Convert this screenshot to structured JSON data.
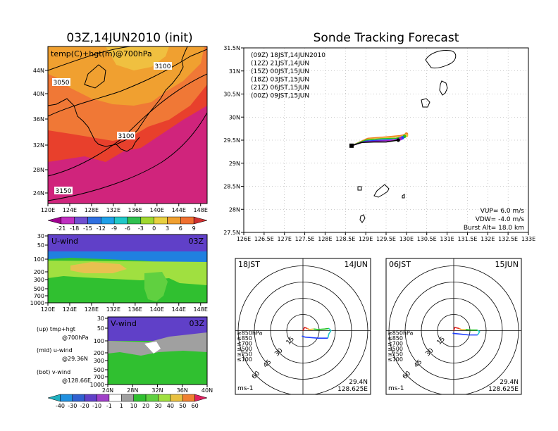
{
  "left_map": {
    "title": "03Z,14JUN2010 (init)",
    "field_label": "temp(C)+hgt(m)@700hPa",
    "lat_ticks": [
      "44N",
      "40N",
      "36N",
      "32N",
      "28N",
      "24N"
    ],
    "lon_ticks": [
      "120E",
      "124E",
      "128E",
      "132E",
      "136E",
      "140E",
      "144E",
      "148E"
    ],
    "contour_labels": [
      "3050",
      "3100",
      "3100",
      "3150"
    ],
    "colorbar_labels": [
      "-21",
      "-18",
      "-15",
      "-12",
      "-9",
      "-6",
      "-3",
      "0",
      "3",
      "6",
      "9"
    ]
  },
  "u_wind": {
    "label": "U-wind",
    "time": "03Z",
    "p_ticks": [
      "30",
      "50",
      "100",
      "200",
      "300",
      "500",
      "700",
      "1000"
    ],
    "lon_ticks": [
      "120E",
      "124E",
      "128E",
      "132E",
      "136E",
      "140E",
      "144E",
      "148E"
    ]
  },
  "v_wind": {
    "label": "V-wind",
    "time": "03Z",
    "p_ticks": [
      "30",
      "50",
      "100",
      "200",
      "300",
      "500",
      "700",
      "1000"
    ],
    "lat_ticks": [
      "24N",
      "28N",
      "32N",
      "36N",
      "40N"
    ]
  },
  "wind_colorbar_labels": [
    "-40",
    "-30",
    "-20",
    "-10",
    "-1",
    "1",
    "10",
    "20",
    "30",
    "40",
    "50",
    "60"
  ],
  "legend_notes": [
    {
      "line1": "(up) tmp+hgt",
      "line2": "@700hPa"
    },
    {
      "line1": "(mid) u-wind",
      "line2": "@29.36N"
    },
    {
      "line1": "(bot) v-wind",
      "line2": "@128.66E"
    }
  ],
  "forecast": {
    "title": "Sonde Tracking Forecast",
    "entries": [
      {
        "text": "(09Z)  18JST,14JUN2010",
        "color": "#000000"
      },
      {
        "text": "(12Z)  21JST,14JUN",
        "color": "#a020c8"
      },
      {
        "text": "(15Z)  00JST,15JUN",
        "color": "#2040ff"
      },
      {
        "text": "(18Z)  03JST,15JUN",
        "color": "#20c020"
      },
      {
        "text": "(21Z)  06JST,15JUN",
        "color": "#e8c040"
      },
      {
        "text": "(00Z)  09JST,15JUN",
        "color": "#f08020"
      }
    ],
    "params": [
      {
        "text": "VUP=  6.0  m/s"
      },
      {
        "text": "VDW=  -4.0  m/s"
      },
      {
        "text": "Burst Alt=  18.0  km"
      }
    ],
    "lat_ticks": [
      "31.5N",
      "31N",
      "30.5N",
      "30N",
      "29.5N",
      "29N",
      "28.5N",
      "28N",
      "27.5N"
    ],
    "lon_ticks": [
      "126E",
      "126.5E",
      "127E",
      "127.5E",
      "128E",
      "128.5E",
      "129E",
      "129.5E",
      "130E",
      "130.5E",
      "131E",
      "131.5E",
      "132E",
      "132.5E",
      "133E"
    ]
  },
  "hodographs": [
    {
      "time": "18JST",
      "date": "14JUN",
      "ring_labels": [
        "15",
        "30",
        "45",
        "60"
      ],
      "levels": [
        {
          "text": "≥850hPa",
          "color": "#e02020"
        },
        {
          "text": "≤850",
          "color": "#f08020"
        },
        {
          "text": "≤700",
          "color": "#e8c040"
        },
        {
          "text": "≤500",
          "color": "#20c020"
        },
        {
          "text": "≤250",
          "color": "#20c8c8"
        },
        {
          "text": "≤100",
          "color": "#2040ff"
        }
      ],
      "unit": "ms-1",
      "lat": "29.4N",
      "lon": "128.625E"
    },
    {
      "time": "06JST",
      "date": "15JUN",
      "ring_labels": [
        "15",
        "30",
        "45",
        "60"
      ],
      "levels": [
        {
          "text": "≥850hPa",
          "color": "#e02020"
        },
        {
          "text": "≤850",
          "color": "#f08020"
        },
        {
          "text": "≤700",
          "color": "#e8c040"
        },
        {
          "text": "≤500",
          "color": "#20c020"
        },
        {
          "text": "≤250",
          "color": "#20c8c8"
        },
        {
          "text": "≤100",
          "color": "#2040ff"
        }
      ],
      "unit": "ms-1",
      "lat": "29.4N",
      "lon": "128.625E"
    }
  ],
  "chart_data": {
    "type": "line",
    "title": "Sonde Tracking Forecast",
    "xlabel": "",
    "ylabel": "",
    "xlim": [
      126,
      133
    ],
    "ylim": [
      27.5,
      31.5
    ],
    "grid": true,
    "legend_position": "top-left",
    "series": [
      {
        "name": "(09Z) 18JST,14JUN2010",
        "color": "#000000",
        "points": [
          [
            128.65,
            29.38
          ],
          [
            128.9,
            29.45
          ],
          [
            129.2,
            29.46
          ],
          [
            129.5,
            29.46
          ],
          [
            129.8,
            29.5
          ]
        ]
      },
      {
        "name": "(12Z) 21JST,14JUN",
        "color": "#a020c8",
        "points": [
          [
            128.65,
            29.38
          ],
          [
            128.95,
            29.46
          ],
          [
            129.3,
            29.48
          ],
          [
            129.6,
            29.49
          ],
          [
            129.85,
            29.53
          ]
        ]
      },
      {
        "name": "(15Z) 00JST,15JUN",
        "color": "#2040ff",
        "points": [
          [
            128.65,
            29.38
          ],
          [
            129.0,
            29.48
          ],
          [
            129.35,
            29.5
          ],
          [
            129.7,
            29.51
          ],
          [
            129.9,
            29.55
          ]
        ]
      },
      {
        "name": "(18Z) 03JST,15JUN",
        "color": "#20c020",
        "points": [
          [
            128.65,
            29.38
          ],
          [
            129.0,
            29.5
          ],
          [
            129.4,
            29.53
          ],
          [
            129.75,
            29.54
          ],
          [
            129.95,
            29.58
          ]
        ]
      },
      {
        "name": "(21Z) 06JST,15JUN",
        "color": "#e8c040",
        "points": [
          [
            128.65,
            29.38
          ],
          [
            129.05,
            29.52
          ],
          [
            129.45,
            29.55
          ],
          [
            129.8,
            29.57
          ],
          [
            130.0,
            29.6
          ]
        ]
      },
      {
        "name": "(00Z) 09JST,15JUN",
        "color": "#f08020",
        "points": [
          [
            128.65,
            29.38
          ],
          [
            129.05,
            29.54
          ],
          [
            129.5,
            29.57
          ],
          [
            129.85,
            29.6
          ],
          [
            130.0,
            29.63
          ]
        ]
      }
    ]
  }
}
